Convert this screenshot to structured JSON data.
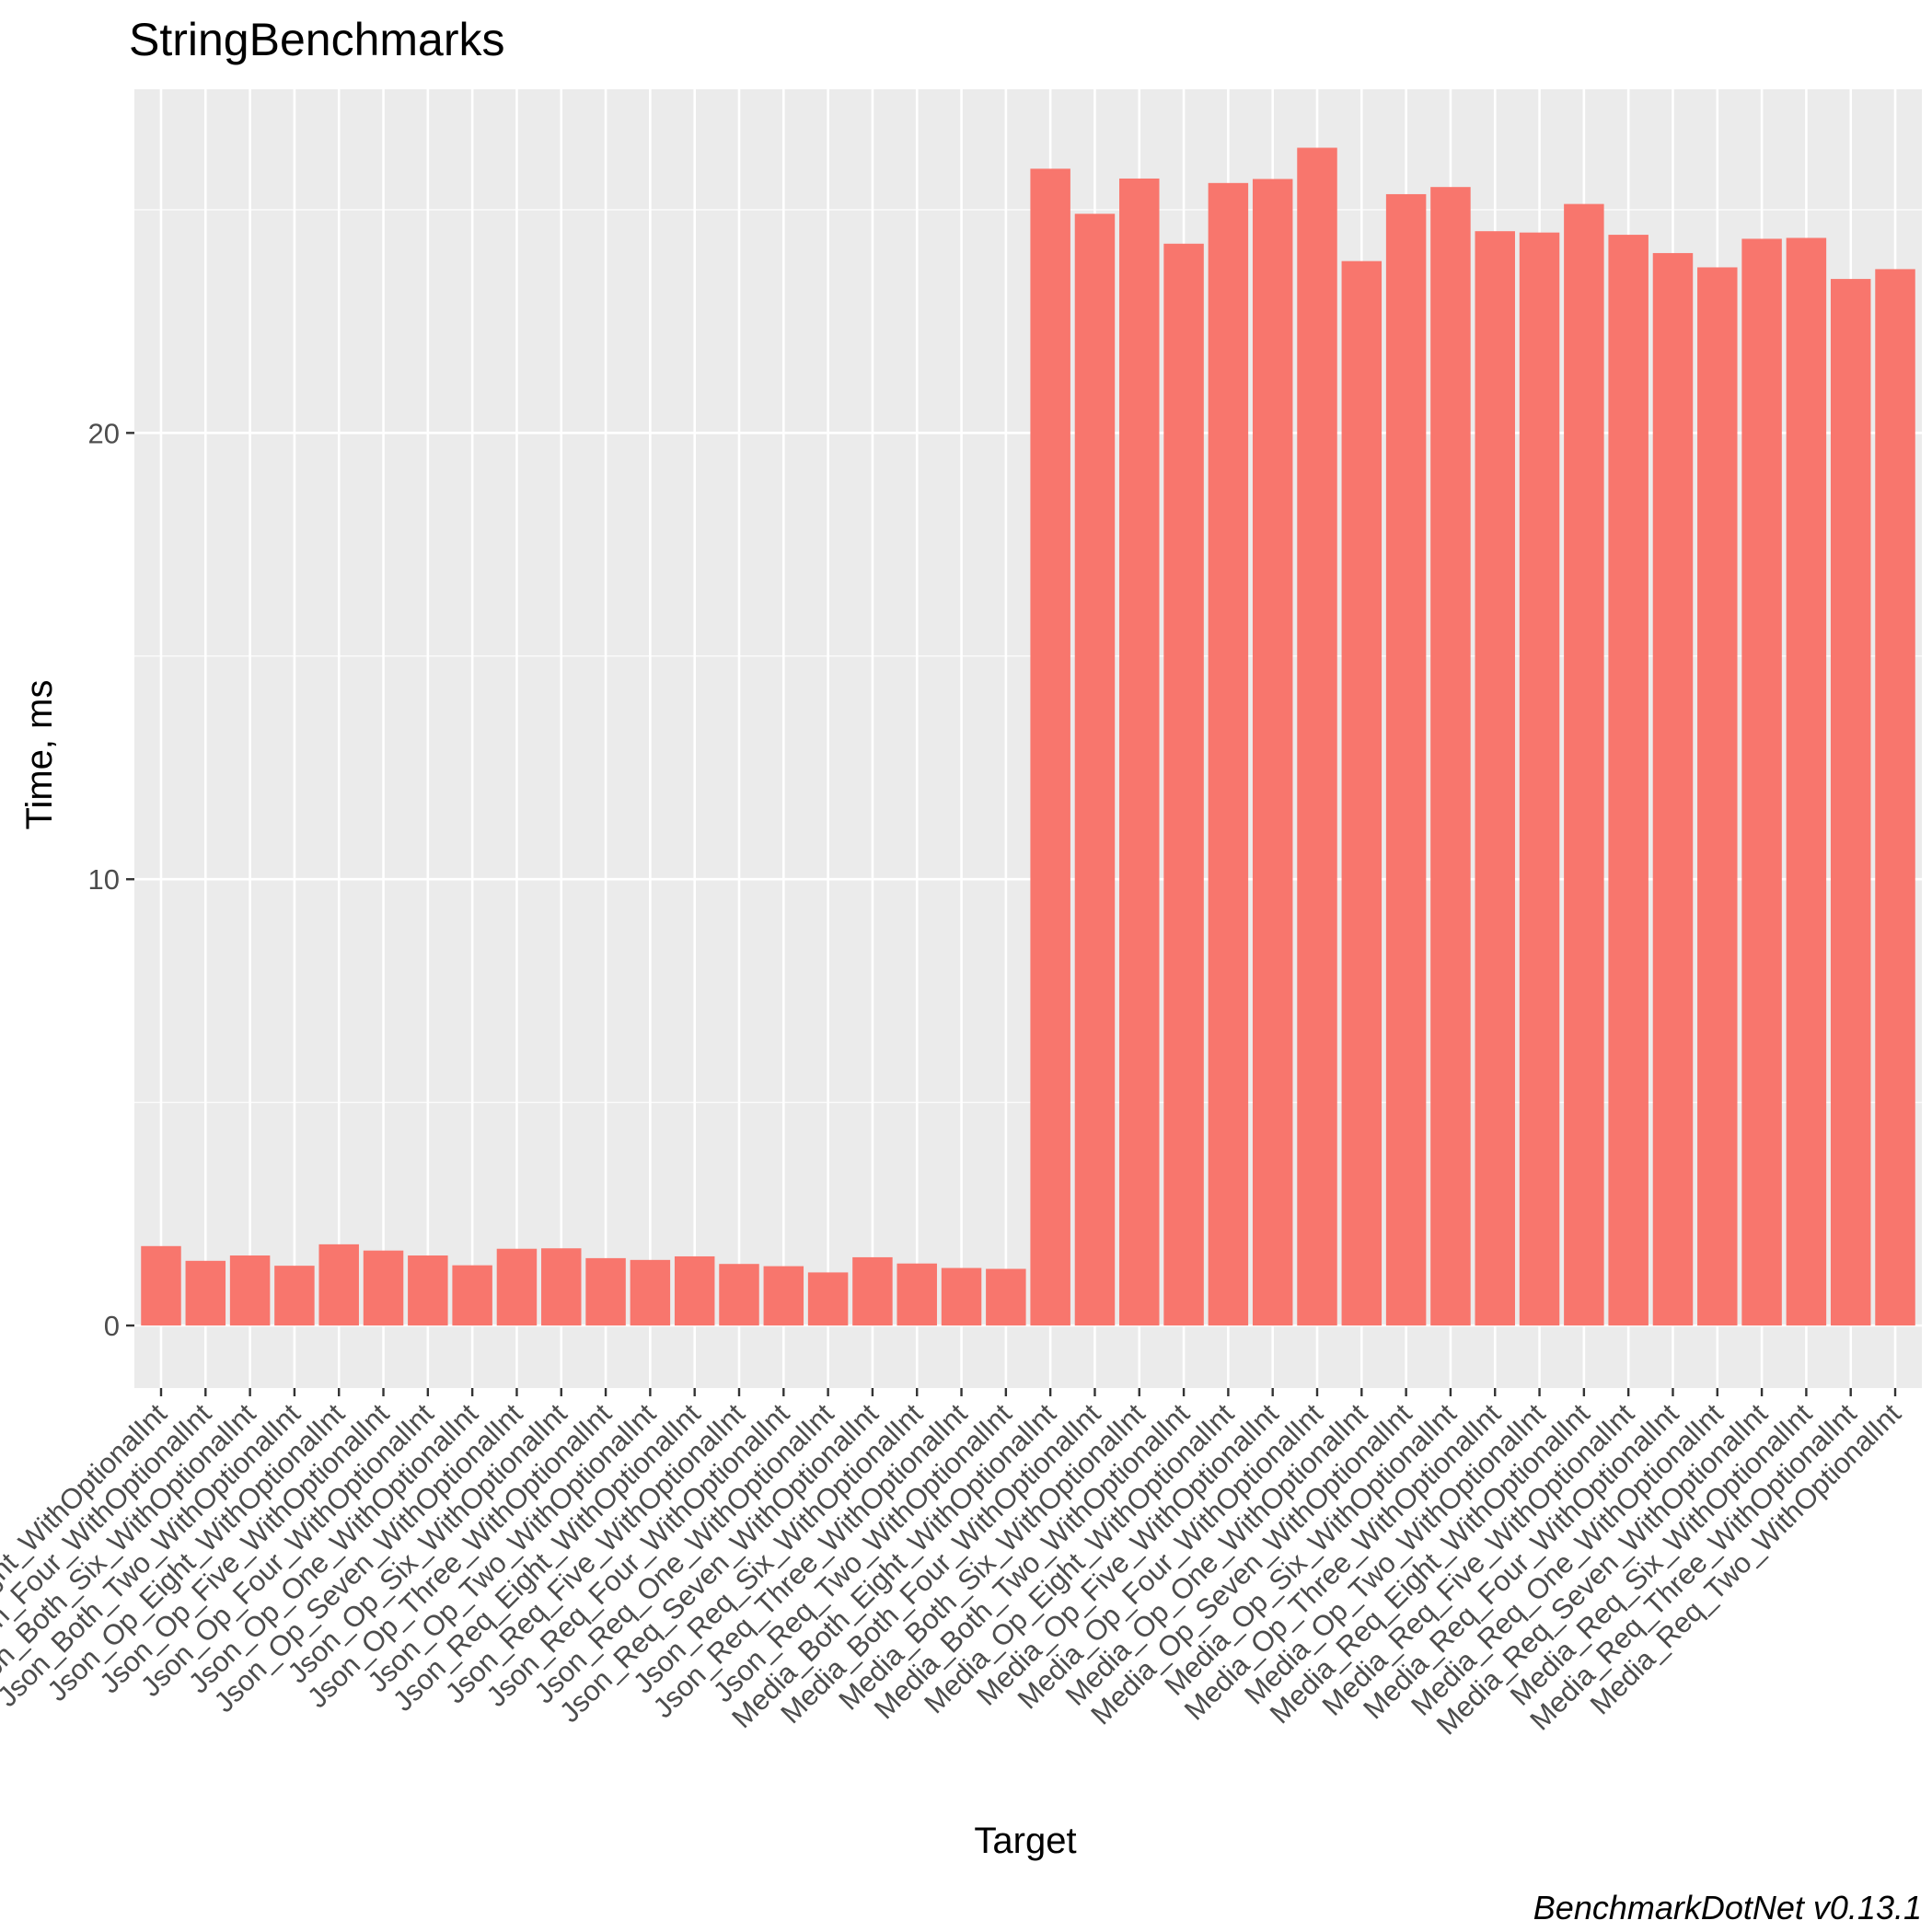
{
  "chart_data": {
    "type": "bar",
    "title": "StringBenchmarks",
    "xlabel": "Target",
    "ylabel": "Time, ms",
    "caption": "BenchmarkDotNet v0.13.1",
    "bar_color": "#F8766D",
    "panel_color": "#EBEBEB",
    "grid": true,
    "ylim": [
      -1.4,
      27.7
    ],
    "yticks": [
      0,
      10,
      20
    ],
    "categories": [
      "Json_Both_Eight_WithOptionalInt",
      "Json_Both_Four_WithOptionalInt",
      "Json_Both_Six_WithOptionalInt",
      "Json_Both_Two_WithOptionalInt",
      "Json_Op_Eight_WithOptionalInt",
      "Json_Op_Five_WithOptionalInt",
      "Json_Op_Four_WithOptionalInt",
      "Json_Op_One_WithOptionalInt",
      "Json_Op_Seven_WithOptionalInt",
      "Json_Op_Six_WithOptionalInt",
      "Json_Op_Three_WithOptionalInt",
      "Json_Op_Two_WithOptionalInt",
      "Json_Req_Eight_WithOptionalInt",
      "Json_Req_Five_WithOptionalInt",
      "Json_Req_Four_WithOptionalInt",
      "Json_Req_One_WithOptionalInt",
      "Json_Req_Seven_WithOptionalInt",
      "Json_Req_Six_WithOptionalInt",
      "Json_Req_Three_WithOptionalInt",
      "Json_Req_Two_WithOptionalInt",
      "Media_Both_Eight_WithOptionalInt",
      "Media_Both_Four_WithOptionalInt",
      "Media_Both_Six_WithOptionalInt",
      "Media_Both_Two_WithOptionalInt",
      "Media_Op_Eight_WithOptionalInt",
      "Media_Op_Five_WithOptionalInt",
      "Media_Op_Four_WithOptionalInt",
      "Media_Op_One_WithOptionalInt",
      "Media_Op_Seven_WithOptionalInt",
      "Media_Op_Six_WithOptionalInt",
      "Media_Op_Three_WithOptionalInt",
      "Media_Op_Two_WithOptionalInt",
      "Media_Req_Eight_WithOptionalInt",
      "Media_Req_Five_WithOptionalInt",
      "Media_Req_Four_WithOptionalInt",
      "Media_Req_One_WithOptionalInt",
      "Media_Req_Seven_WithOptionalInt",
      "Media_Req_Six_WithOptionalInt",
      "Media_Req_Three_WithOptionalInt",
      "Media_Req_Two_WithOptionalInt"
    ],
    "values": [
      1.78,
      1.45,
      1.57,
      1.34,
      1.82,
      1.68,
      1.57,
      1.35,
      1.72,
      1.73,
      1.51,
      1.47,
      1.55,
      1.38,
      1.33,
      1.19,
      1.53,
      1.39,
      1.29,
      1.27,
      25.92,
      24.91,
      25.7,
      24.24,
      25.6,
      25.69,
      26.39,
      23.85,
      25.35,
      25.51,
      24.52,
      24.49,
      25.13,
      24.44,
      24.03,
      23.71,
      24.35,
      24.37,
      23.45,
      23.67
    ]
  }
}
